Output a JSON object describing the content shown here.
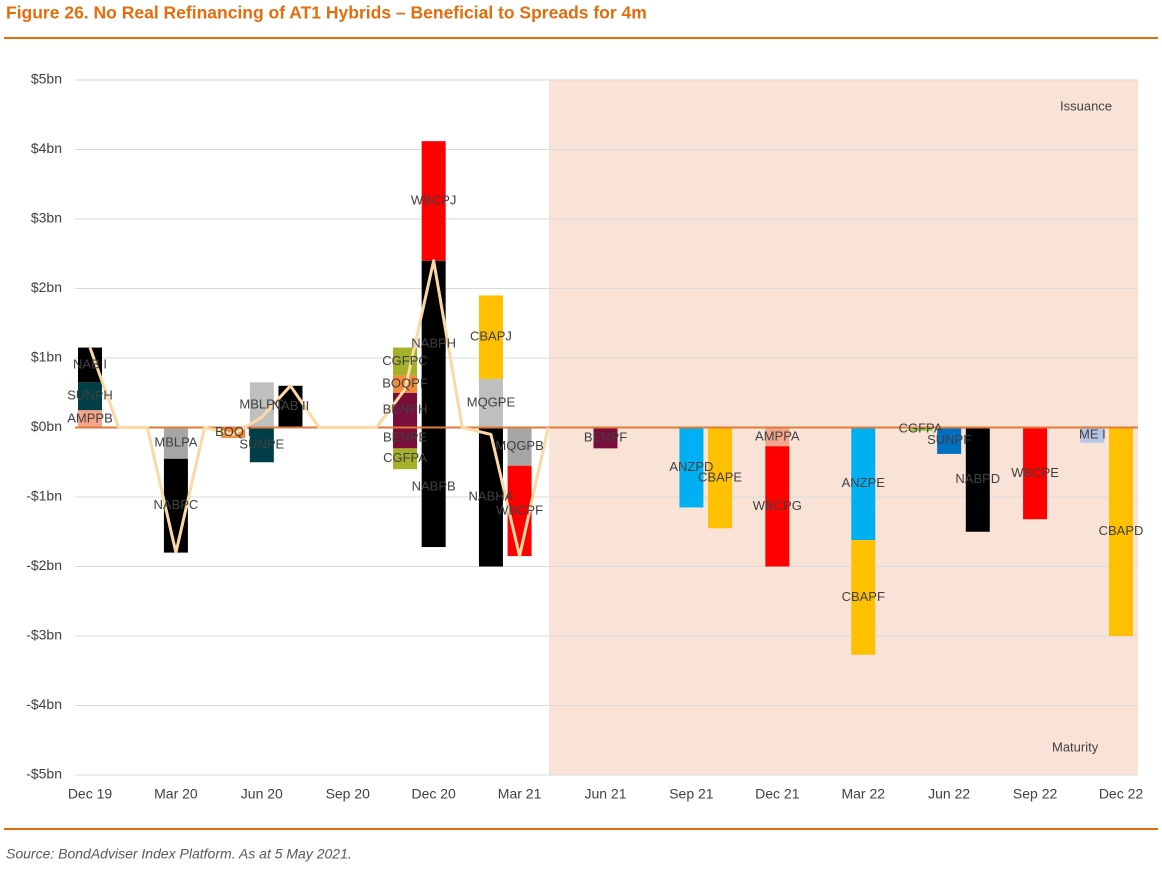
{
  "chart_data": {
    "type": "stacked-bar-line",
    "title": "Figure 26. No Real Refinancing of AT1 Hybrids – Beneficial to Spreads for 4m",
    "source": "Source: BondAdviser Index Platform. As at 5 May 2021.",
    "annotations": [
      "Issuance",
      "Maturity"
    ],
    "categories": [
      "Dec 19",
      null,
      null,
      "Mar 20",
      null,
      null,
      "Jun 20",
      null,
      null,
      "Sep 20",
      null,
      null,
      "Dec 20",
      null,
      null,
      "Mar 21",
      null,
      null,
      "Jun 21",
      null,
      null,
      "Sep 21",
      null,
      null,
      "Dec 21",
      null,
      null,
      "Mar 22",
      null,
      null,
      "Jun 22",
      null,
      null,
      "Sep 22",
      null,
      null,
      "Dec 22"
    ],
    "ylim": [
      -5,
      5
    ],
    "yticks": [
      {
        "value": -5,
        "label": "-$5bn"
      },
      {
        "value": -4,
        "label": "-$4bn"
      },
      {
        "value": -3,
        "label": "-$3bn"
      },
      {
        "value": -2,
        "label": "-$2bn"
      },
      {
        "value": -1,
        "label": "-$1bn"
      },
      {
        "value": 0,
        "label": "$0bn"
      },
      {
        "value": 1,
        "label": "$1bn"
      },
      {
        "value": 2,
        "label": "$2bn"
      },
      {
        "value": 3,
        "label": "$3bn"
      },
      {
        "value": 4,
        "label": "$4bn"
      },
      {
        "value": 5,
        "label": "$5bn"
      }
    ],
    "grid": true,
    "series": [
      {
        "color": "#fcd9a4",
        "values": [
          1.15,
          0,
          0,
          -1.8,
          0,
          -0.1,
          0.15,
          0.6,
          0,
          0,
          0,
          0.55,
          2.4,
          0,
          -0.1,
          -1.85,
          0,
          null,
          null,
          null,
          null,
          null,
          null,
          null,
          null,
          null,
          null,
          null,
          null,
          null,
          null,
          null,
          null,
          null,
          null,
          null,
          null
        ]
      }
    ],
    "stacks": [
      [
        {
          "name": "AMPPB",
          "value": 0.25,
          "color": "#f4a58a"
        },
        {
          "name": "SUNPH",
          "value": 0.4,
          "color": "#003f46"
        },
        {
          "name": "NAB I",
          "value": 0.5,
          "color": "#000000"
        }
      ],
      [],
      [],
      [
        {
          "name": "MBLPA",
          "value": -0.45,
          "color": "#a6a6a6"
        },
        {
          "name": "NABPC",
          "value": -1.35,
          "color": "#000000"
        }
      ],
      [],
      [
        {
          "name": "BOQ I",
          "value": -0.15,
          "color": "#f28c38"
        }
      ],
      [
        {
          "name": "MBLPC",
          "value": 0.65,
          "color": "#bfbfbf"
        },
        {
          "name": "SUNPE",
          "value": -0.5,
          "color": "#003f46"
        }
      ],
      [
        {
          "name": "NAB II",
          "value": 0.6,
          "color": "#000000"
        }
      ],
      [],
      [],
      [],
      [
        {
          "name": "BENPH",
          "value": 0.5,
          "color": "#7b0d3a"
        },
        {
          "name": "BOQPF",
          "value": 0.25,
          "color": "#f28c38"
        },
        {
          "name": "CGFPC",
          "value": 0.4,
          "color": "#a5b128"
        },
        {
          "name": "BENPE",
          "value": -0.3,
          "color": "#7b0d3a"
        },
        {
          "name": "CGFPA",
          "value": -0.3,
          "color": "#a5b128"
        }
      ],
      [
        {
          "name": "NABPH",
          "value": 2.4,
          "color": "#000000"
        },
        {
          "name": "WBCPJ",
          "value": 1.72,
          "color": "#ff0000"
        },
        {
          "name": "NABPB",
          "value": -1.72,
          "color": "#000000"
        }
      ],
      [],
      [
        {
          "name": "MQGPE",
          "value": 0.7,
          "color": "#bfbfbf"
        },
        {
          "name": "CBAPJ",
          "value": 1.2,
          "color": "#ffc000"
        },
        {
          "name": "NABHA",
          "value": -2.0,
          "color": "#000000"
        }
      ],
      [
        {
          "name": "MQGPB",
          "value": -0.55,
          "color": "#a6a6a6"
        },
        {
          "name": "WBCPF",
          "value": -1.3,
          "color": "#ff0000"
        }
      ],
      [],
      [],
      [
        {
          "name": "BENPF",
          "value": -0.3,
          "color": "#7b0d3a"
        }
      ],
      [],
      [],
      [
        {
          "name": "ANZPD",
          "value": -1.15,
          "color": "#00b0f0"
        }
      ],
      [
        {
          "name": "CBAPE",
          "value": -1.45,
          "color": "#ffc000"
        }
      ],
      [],
      [
        {
          "name": "AMPPA",
          "value": -0.27,
          "color": "#f4a58a"
        },
        {
          "name": "WBCPG",
          "value": -1.73,
          "color": "#ff0000"
        }
      ],
      [],
      [],
      [
        {
          "name": "ANZPE",
          "value": -1.62,
          "color": "#00b0f0"
        },
        {
          "name": "CBAPF",
          "value": -1.65,
          "color": "#ffc000"
        }
      ],
      [],
      [
        {
          "name": "CGFPA",
          "value": -0.05,
          "color": "#92d050"
        }
      ],
      [
        {
          "name": "SUNPF",
          "value": -0.38,
          "color": "#0070c0"
        }
      ],
      [
        {
          "name": "NABPD",
          "value": -1.5,
          "color": "#000000"
        }
      ],
      [],
      [
        {
          "name": "WBCPE",
          "value": -1.32,
          "color": "#ff0000"
        }
      ],
      [],
      [
        {
          "name": "ME I",
          "value": -0.22,
          "color": "#b4c7e7"
        }
      ],
      [
        {
          "name": "CBAPD",
          "value": -3.0,
          "color": "#ffc000"
        }
      ]
    ]
  }
}
